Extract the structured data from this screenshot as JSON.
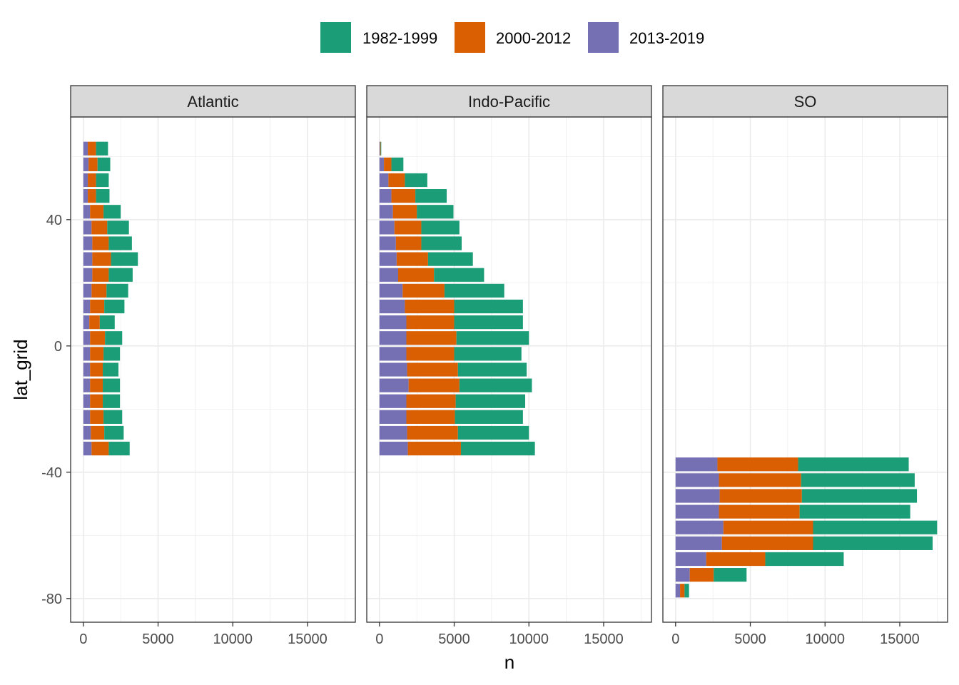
{
  "chart_data": {
    "type": "bar",
    "orientation": "horizontal",
    "stacked": true,
    "xlabel": "n",
    "ylabel": "lat_grid",
    "xlim": [
      -850,
      18200
    ],
    "ylim": [
      -87.5,
      72.5
    ],
    "x_ticks": [
      0,
      5000,
      10000,
      15000
    ],
    "x_tick_labels": [
      "0",
      "5000",
      "10000",
      "15000"
    ],
    "y_ticks": [
      40,
      0,
      -40,
      -80
    ],
    "y_tick_labels": [
      "40",
      "0",
      "-40",
      "-80"
    ],
    "grid": true,
    "legend_position": "top",
    "legend": [
      "1982-1999",
      "2000-2012",
      "2013-2019"
    ],
    "stack_order_left_to_right": [
      "2013-2019",
      "2000-2012",
      "1982-1999"
    ],
    "colors": {
      "1982-1999": "#1b9e77",
      "2000-2012": "#d95f02",
      "2013-2019": "#7570b3"
    },
    "panels": [
      {
        "name": "Atlantic",
        "lat": [
          62.5,
          57.5,
          52.5,
          47.5,
          42.5,
          37.5,
          32.5,
          27.5,
          22.5,
          17.5,
          12.5,
          7.5,
          2.5,
          -2.5,
          -7.5,
          -12.5,
          -17.5,
          -22.5,
          -27.5,
          -32.5
        ],
        "series": [
          {
            "name": "2013-2019",
            "values": [
              300,
              350,
              300,
              300,
              450,
              550,
              600,
              600,
              600,
              550,
              450,
              400,
              450,
              450,
              450,
              450,
              450,
              450,
              500,
              550
            ]
          },
          {
            "name": "2000-2012",
            "values": [
              550,
              600,
              550,
              550,
              900,
              1050,
              1100,
              1250,
              1100,
              1000,
              950,
              700,
              1000,
              900,
              850,
              850,
              850,
              900,
              900,
              1150
            ]
          },
          {
            "name": "1982-1999",
            "values": [
              800,
              850,
              850,
              900,
              1150,
              1450,
              1550,
              1800,
              1600,
              1450,
              1350,
              1000,
              1150,
              1100,
              1050,
              1150,
              1150,
              1250,
              1300,
              1400
            ]
          }
        ]
      },
      {
        "name": "Indo-Pacific",
        "lat": [
          62.5,
          57.5,
          52.5,
          47.5,
          42.5,
          37.5,
          32.5,
          27.5,
          22.5,
          17.5,
          12.5,
          7.5,
          2.5,
          -2.5,
          -7.5,
          -12.5,
          -17.5,
          -22.5,
          -27.5,
          -32.5
        ],
        "series": [
          {
            "name": "2013-2019",
            "values": [
              40,
              300,
              600,
              800,
              900,
              1000,
              1100,
              1150,
              1250,
              1550,
              1700,
              1800,
              1800,
              1800,
              1850,
              1950,
              1800,
              1800,
              1850,
              1900
            ]
          },
          {
            "name": "2000-2012",
            "values": [
              40,
              500,
              1100,
              1600,
              1600,
              1800,
              1700,
              2100,
              2400,
              2800,
              3300,
              3200,
              3350,
              3200,
              3400,
              3400,
              3300,
              3250,
              3400,
              3550
            ]
          },
          {
            "name": "1982-1999",
            "values": [
              40,
              800,
              1500,
              2100,
              2450,
              2550,
              2700,
              3000,
              3350,
              4000,
              4600,
              4600,
              4850,
              4500,
              4600,
              4850,
              4650,
              4550,
              4750,
              4950
            ]
          }
        ]
      },
      {
        "name": "SO",
        "lat": [
          -37.5,
          -42.5,
          -47.5,
          -52.5,
          -57.5,
          -62.5,
          -67.5,
          -72.5,
          -77.5
        ],
        "series": [
          {
            "name": "2013-2019",
            "values": [
              2800,
              2900,
              2950,
              2900,
              3200,
              3100,
              2050,
              950,
              300
            ]
          },
          {
            "name": "2000-2012",
            "values": [
              5400,
              5500,
              5500,
              5400,
              6000,
              6100,
              3950,
              1600,
              300
            ]
          },
          {
            "name": "1982-1999",
            "values": [
              7400,
              7600,
              7700,
              7400,
              8300,
              8000,
              5250,
              2200,
              300
            ]
          }
        ]
      }
    ]
  }
}
